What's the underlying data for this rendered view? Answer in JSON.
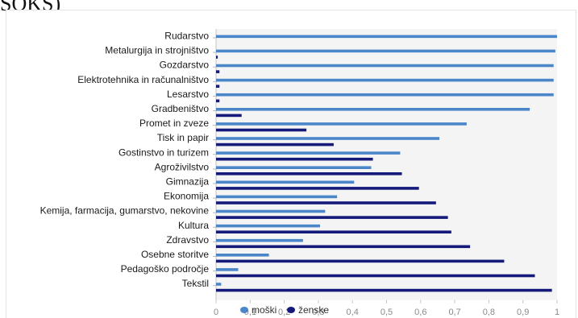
{
  "header": {
    "title_fragment": "SOKS)"
  },
  "chart_data": {
    "type": "bar",
    "orientation": "horizontal",
    "categories": [
      "Rudarstvo",
      "Metalurgija in strojništvo",
      "Gozdarstvo",
      "Elektrotehnika in računalništvo",
      "Lesarstvo",
      "Gradbeništvo",
      "Promet in zveze",
      "Tisk in papir",
      "Gostinstvo in turizem",
      "Agroživilstvo",
      "Gimnazija",
      "Ekonomija",
      "Kemija, farmacija, gumarstvo, nekovine",
      "Kultura",
      "Zdravstvo",
      "Osebne storitve",
      "Pedagoško področje",
      "Tekstil"
    ],
    "series": [
      {
        "name": "moški",
        "color": "#4a86c8",
        "values": [
          1.0,
          0.995,
          0.99,
          0.99,
          0.99,
          0.92,
          0.735,
          0.655,
          0.54,
          0.455,
          0.405,
          0.355,
          0.32,
          0.305,
          0.255,
          0.155,
          0.065,
          0.015
        ]
      },
      {
        "name": "ženske",
        "color": "#151a7a",
        "values": [
          0.0,
          0.005,
          0.01,
          0.01,
          0.01,
          0.075,
          0.265,
          0.345,
          0.46,
          0.545,
          0.595,
          0.645,
          0.68,
          0.69,
          0.745,
          0.845,
          0.935,
          0.985
        ]
      }
    ],
    "xlim": [
      0,
      1
    ],
    "xticks": [
      "0",
      "0,1",
      "0,2",
      "0,3",
      "0,4",
      "0,5",
      "0,6",
      "0,7",
      "0,8",
      "0,9",
      "1"
    ],
    "grid": false,
    "legend_position": "bottom"
  }
}
